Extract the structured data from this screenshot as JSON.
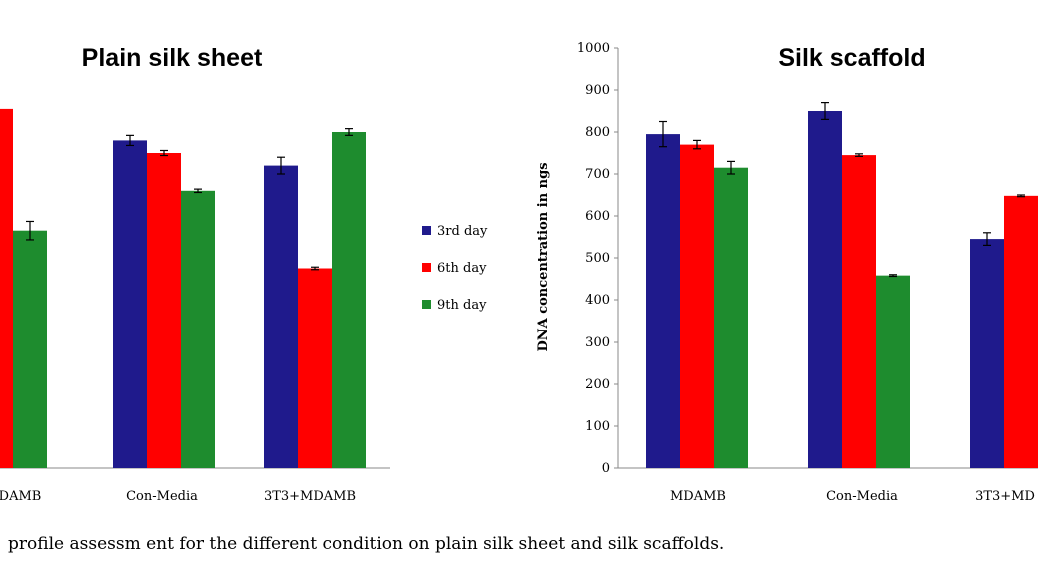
{
  "caption": "profile assessm ent for the different condition on plain silk sheet and silk scaffolds.",
  "legend": {
    "items": [
      {
        "label": "3rd day",
        "color": "#1f1a8c"
      },
      {
        "label": "6th day",
        "color": "#ff0000"
      },
      {
        "label": "9th day",
        "color": "#1e8c2e"
      }
    ]
  },
  "chart_data": [
    {
      "type": "bar",
      "title": "Plain silk sheet",
      "categories": [
        "DAMB",
        "Con-Media",
        "3T3+MDAMB"
      ],
      "ylim": [
        0,
        1000
      ],
      "series": [
        {
          "name": "3rd day",
          "values": [
            null,
            780,
            720
          ],
          "errors": [
            null,
            12,
            20
          ]
        },
        {
          "name": "6th day",
          "values": [
            855,
            750,
            475
          ],
          "errors": [
            18,
            6,
            3
          ]
        },
        {
          "name": "9th day",
          "values": [
            565,
            660,
            800
          ],
          "errors": [
            22,
            4,
            8
          ]
        }
      ]
    },
    {
      "type": "bar",
      "title": "Silk scaffold",
      "categories": [
        "MDAMB",
        "Con-Media",
        "3T3+MD"
      ],
      "ylabel": "DNA concentration in ngs",
      "ylim": [
        0,
        1000
      ],
      "yticks": [
        "0",
        "100",
        "200",
        "300",
        "400",
        "500",
        "600",
        "700",
        "800",
        "900",
        "1000"
      ],
      "series": [
        {
          "name": "3rd day",
          "values": [
            795,
            850,
            545
          ],
          "errors": [
            30,
            20,
            15
          ]
        },
        {
          "name": "6th day",
          "values": [
            770,
            745,
            648
          ],
          "errors": [
            10,
            3,
            2
          ]
        },
        {
          "name": "9th day",
          "values": [
            715,
            458,
            null
          ],
          "errors": [
            15,
            2,
            null
          ]
        }
      ]
    }
  ]
}
